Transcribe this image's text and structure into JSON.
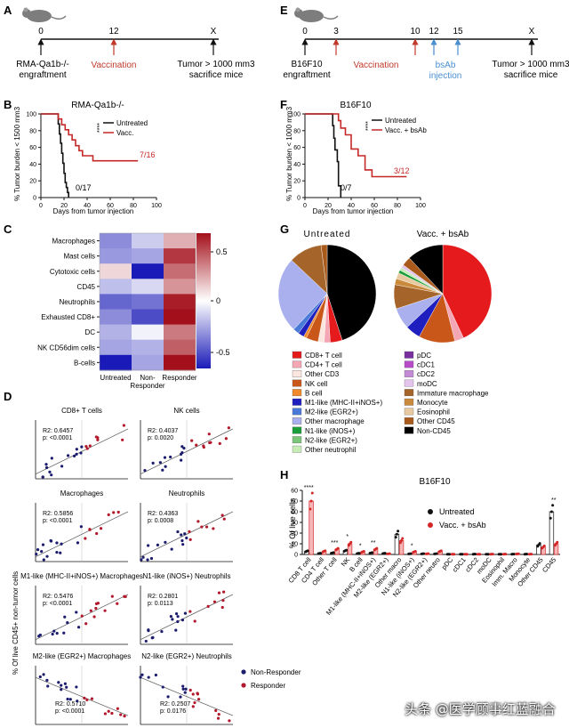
{
  "panels": {
    "A": {
      "letter": "A",
      "ticks": [
        "0",
        "12",
        "X"
      ],
      "engraft": "RMA-Qa1b-/-",
      "engraft2": "engraftment",
      "vacc": "Vaccination",
      "tumor": "Tumor > 1000 mm3",
      "tumor2": "sacrifice mice"
    },
    "E": {
      "letter": "E",
      "ticks": [
        "0",
        "3",
        "10",
        "12",
        "15",
        "X"
      ],
      "engraft": "B16F10",
      "engraft2": "engraftment",
      "vacc": "Vaccination",
      "bsab": "bsAb",
      "bsab2": "injection",
      "tumor": "Tumor > 1000 mm3",
      "tumor2": "sacrifice mice"
    },
    "B": {
      "letter": "B",
      "title": "RMA-Qa1b-/-",
      "ylabel": "% Tumor burden < 1500 mm3",
      "xlabel": "Days from tumor injection",
      "legend": [
        "Untreated",
        "Vacc."
      ],
      "sig": "****",
      "label_vacc": "7/16",
      "label_untr": "0/17",
      "xticks": [
        "0",
        "20",
        "40",
        "60",
        "80",
        "100"
      ],
      "yticks": [
        "0",
        "20",
        "40",
        "60",
        "80",
        "100"
      ]
    },
    "F": {
      "letter": "F",
      "title": "B16F10",
      "ylabel": "% Tumor burden < 1000 mm3",
      "xlabel": "Days from tumor injection",
      "legend": [
        "Untreated",
        "Vacc. + bsAb"
      ],
      "sig": "****",
      "label_vacc": "3/12",
      "label_untr": "0/7",
      "xticks": [
        "0",
        "20",
        "40",
        "60",
        "80",
        "100"
      ],
      "yticks": [
        "0",
        "20",
        "40",
        "60",
        "80",
        "100"
      ]
    },
    "C": {
      "letter": "C",
      "rows": [
        "Macrophages",
        "Mast cells",
        "Cytotoxic cells",
        "CD45",
        "Neutrophils",
        "Exhausted CD8+",
        "DC",
        "NK CD56dim cells",
        "B-cells"
      ],
      "cols": [
        "Untreated",
        "Non-Responder",
        "Responder"
      ],
      "cbar_ticks": [
        "0.5",
        "0",
        "-0.5"
      ]
    },
    "G": {
      "letter": "G",
      "title_left": "Untreated",
      "title_right": "Vacc. + bsAb",
      "legend_left": [
        "CD8+ T cell",
        "CD4+ T cell",
        "Other CD3",
        "NK cell",
        "B cell",
        "M1-like (MHC-II+iNOS+)",
        "M2-like (EGR2+)",
        "Other macrophage",
        "N1-like (iNOS+)",
        "N2-like (EGR2+)",
        "Other neutrophil"
      ],
      "legend_right": [
        "pDC",
        "cDC1",
        "cDC2",
        "moDC",
        "Immature macrophage",
        "Monocyte",
        "Eosinophil",
        "Other CD45",
        "Non-CD45"
      ]
    },
    "D": {
      "letter": "D",
      "ylabel": "% Of live CD45+ non-tumor cells",
      "xlabel": "% Regression",
      "xticks": [
        "-100",
        "-50",
        "0",
        "50",
        "100"
      ],
      "legend": [
        "Non-Responder",
        "Responder"
      ],
      "scatters": [
        {
          "title": "CD8+ T cells",
          "r2": "R2: 0.6457",
          "p": "p: <0.0001"
        },
        {
          "title": "NK cells",
          "r2": "R2: 0.4037",
          "p": "p: 0.0020"
        },
        {
          "title": "Macrophages",
          "r2": "R2: 0.5856",
          "p": "p: <0.0001"
        },
        {
          "title": "Neutrophils",
          "r2": "R2: 0.4363",
          "p": "p: 0.0008"
        },
        {
          "title": "M1-like (MHC-II+iNOS+) Macrophages",
          "r2": "R2: 0.5476",
          "p": "p: <0.0001"
        },
        {
          "title": "N1-like (iNOS+) Neutrophils",
          "r2": "R2: 0.2801",
          "p": "p: 0.0113"
        },
        {
          "title": "M2-like (EGR2+) Macrophages",
          "r2": "R2: 0.5710",
          "p": "p: <0.0001"
        },
        {
          "title": "N2-like (EGR2+) Neutrophils",
          "r2": "R2: 0.2507",
          "p": "p: 0.0176"
        }
      ]
    },
    "H": {
      "letter": "H",
      "title": "B16F10",
      "ylabel": "% Of live cells",
      "yticks": [
        "0",
        "10",
        "20",
        "30",
        "40",
        "50",
        "60"
      ],
      "legend": [
        "Untreated",
        "Vacc. + bsAb"
      ]
    }
  },
  "watermark": "头条 @医学顾事红蓝融合",
  "chart_data": [
    {
      "type": "line",
      "title": "RMA-Qa1b-/-",
      "xlabel": "Days from tumor injection",
      "ylabel": "% Tumor burden < 1500 mm3",
      "xlim": [
        0,
        100
      ],
      "ylim": [
        0,
        100
      ],
      "series": [
        {
          "name": "Untreated",
          "color": "#111111",
          "x": [
            0,
            14,
            15,
            16,
            17,
            18,
            19,
            20,
            21,
            22,
            23,
            24
          ],
          "y": [
            100,
            100,
            88,
            76,
            65,
            53,
            41,
            29,
            18,
            12,
            6,
            0
          ]
        },
        {
          "name": "Vacc.",
          "color": "#c62828",
          "x": [
            0,
            12,
            15,
            18,
            21,
            24,
            27,
            30,
            33,
            36,
            40,
            45,
            84
          ],
          "y": [
            100,
            100,
            94,
            87,
            81,
            75,
            69,
            62,
            56,
            50,
            50,
            44,
            44
          ]
        }
      ]
    },
    {
      "type": "line",
      "title": "B16F10",
      "xlabel": "Days from tumor injection",
      "ylabel": "% Tumor burden < 1000 mm3",
      "xlim": [
        0,
        100
      ],
      "ylim": [
        0,
        100
      ],
      "series": [
        {
          "name": "Untreated",
          "color": "#111111",
          "x": [
            0,
            22,
            24,
            25,
            26,
            28,
            29,
            31
          ],
          "y": [
            100,
            100,
            86,
            71,
            57,
            43,
            14,
            0
          ]
        },
        {
          "name": "Vacc. + bsAb",
          "color": "#c62828",
          "x": [
            0,
            27,
            29,
            31,
            35,
            40,
            46,
            52,
            58,
            88
          ],
          "y": [
            100,
            100,
            92,
            83,
            75,
            58,
            50,
            33,
            25,
            25
          ]
        }
      ]
    },
    {
      "type": "heatmap",
      "rows": [
        "Macrophages",
        "Mast cells",
        "Cytotoxic cells",
        "CD45",
        "Neutrophils",
        "Exhausted CD8+",
        "DC",
        "NK CD56dim cells",
        "B-cells"
      ],
      "cols": [
        "Untreated",
        "Non-Responder",
        "Responder"
      ],
      "values": [
        [
          -0.45,
          -0.2,
          0.3
        ],
        [
          -0.4,
          -0.35,
          0.75
        ],
        [
          0.15,
          -0.95,
          0.55
        ],
        [
          -0.25,
          -0.15,
          0.4
        ],
        [
          -0.6,
          -0.55,
          0.85
        ],
        [
          -0.45,
          -0.7,
          0.95
        ],
        [
          -0.3,
          -0.05,
          0.5
        ],
        [
          -0.35,
          -0.3,
          0.6
        ],
        [
          -0.9,
          -0.35,
          0.95
        ]
      ],
      "range": [
        -0.9,
        0.9
      ]
    },
    {
      "type": "pie",
      "title": "Untreated",
      "labels": [
        "Non-CD45",
        "CD8+ T cell",
        "CD4+ T cell",
        "Other CD3",
        "NK cell",
        "B cell",
        "M1-like (MHC-II+iNOS+)",
        "M2-like (EGR2+)",
        "Other macrophage",
        "Immature macrophage",
        "Other CD45"
      ],
      "values": [
        45,
        4,
        2,
        2,
        4,
        1,
        2,
        2,
        25,
        11,
        2
      ]
    },
    {
      "type": "pie",
      "title": "Vacc. + bsAb",
      "labels": [
        "CD8+ T cell",
        "CD4+ T cell",
        "NK cell",
        "M1-like (MHC-II+iNOS+)",
        "Other macrophage",
        "Immature macrophage",
        "Monocyte",
        "Eosinophil",
        "N1-like (iNOS+)",
        "Other neutrophil",
        "moDC",
        "Other CD45",
        "Non-CD45"
      ],
      "values": [
        43,
        3,
        12,
        5,
        7,
        8,
        2,
        2,
        1,
        1,
        1,
        3,
        12
      ]
    },
    {
      "type": "bar",
      "title": "B16F10",
      "ylabel": "% Of live cells",
      "ylim": [
        0,
        60
      ],
      "categories": [
        "CD8 T cell",
        "CD4 T cell",
        "Other T cell",
        "NK",
        "B cell",
        "M1-like (MHC-II+iNOS+)",
        "M2-like (EGR2+)",
        "Other macro",
        "N1-like (iNOS+)",
        "N2-like (EGR2+)",
        "Other neutro",
        "pDC",
        "cDC1",
        "cDC2",
        "moDC",
        "Eosinophil",
        "Imm. Macro",
        "Monocyte",
        "Other CD45",
        "CD45"
      ],
      "series": [
        {
          "name": "Untreated",
          "values": [
            3,
            1,
            1.5,
            3.5,
            1,
            1.5,
            1,
            19,
            0.6,
            0.6,
            0.6,
            0.2,
            0.2,
            0.3,
            0.2,
            0.2,
            0.3,
            0.3,
            9,
            40
          ]
        },
        {
          "name": "Vacc. + bsAb",
          "values": [
            50,
            3,
            5,
            10,
            2.5,
            5,
            0.6,
            13,
            2.5,
            0.6,
            3,
            0.2,
            0.2,
            0.2,
            0.3,
            0.3,
            0.5,
            0.3,
            7,
            10
          ]
        }
      ],
      "significance": [
        "****",
        "",
        "***",
        "*",
        "*",
        "**",
        "",
        "",
        "*",
        "",
        "",
        "",
        "",
        "",
        "",
        "",
        "",
        "",
        "",
        "**"
      ]
    }
  ]
}
